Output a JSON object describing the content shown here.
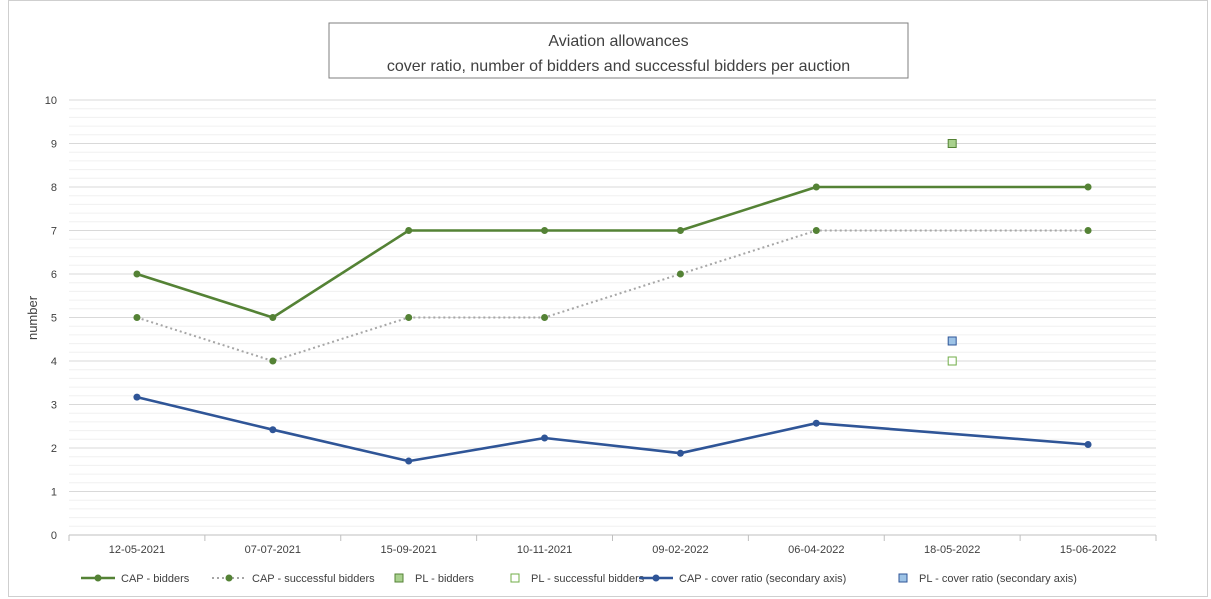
{
  "chart_data": {
    "type": "line",
    "title": [
      "Aviation allowances",
      "cover ratio, number of bidders and successful bidders per auction"
    ],
    "ylabel": "number",
    "ylim": [
      0,
      10
    ],
    "yticks": [
      0,
      1,
      2,
      3,
      4,
      5,
      6,
      7,
      8,
      9,
      10
    ],
    "categories": [
      "12-05-2021",
      "07-07-2021",
      "15-09-2021",
      "10-11-2021",
      "09-02-2022",
      "06-04-2022",
      "18-05-2022",
      "15-06-2022"
    ],
    "grid": true,
    "legend_position": "bottom",
    "series": [
      {
        "name": "CAP - bidders",
        "style": "line",
        "color": "#548235",
        "values": [
          6,
          5,
          7,
          7,
          7,
          8,
          null,
          8
        ]
      },
      {
        "name": "CAP - successful bidders",
        "style": "dotted",
        "color": "#a6a6a6",
        "marker_color": "#548235",
        "values": [
          5,
          4,
          5,
          5,
          6,
          7,
          null,
          7
        ]
      },
      {
        "name": "PL - bidders",
        "style": "square-filled",
        "color": "#a9d18e",
        "edge": "#548235",
        "values": [
          null,
          null,
          null,
          null,
          null,
          null,
          9,
          null
        ]
      },
      {
        "name": "PL - successful bidders",
        "style": "square-open",
        "color": "#ffffff",
        "edge": "#70ad47",
        "values": [
          null,
          null,
          null,
          null,
          null,
          null,
          4,
          null
        ]
      },
      {
        "name": "CAP - cover ratio (secondary axis)",
        "style": "line",
        "color": "#2f5597",
        "values": [
          3.17,
          2.42,
          1.7,
          2.23,
          1.88,
          2.57,
          null,
          2.08
        ]
      },
      {
        "name": "PL - cover ratio (secondary axis)",
        "style": "square-filled",
        "color": "#9dc3e6",
        "edge": "#2f5597",
        "values": [
          null,
          null,
          null,
          null,
          null,
          null,
          4.46,
          null
        ]
      }
    ]
  }
}
